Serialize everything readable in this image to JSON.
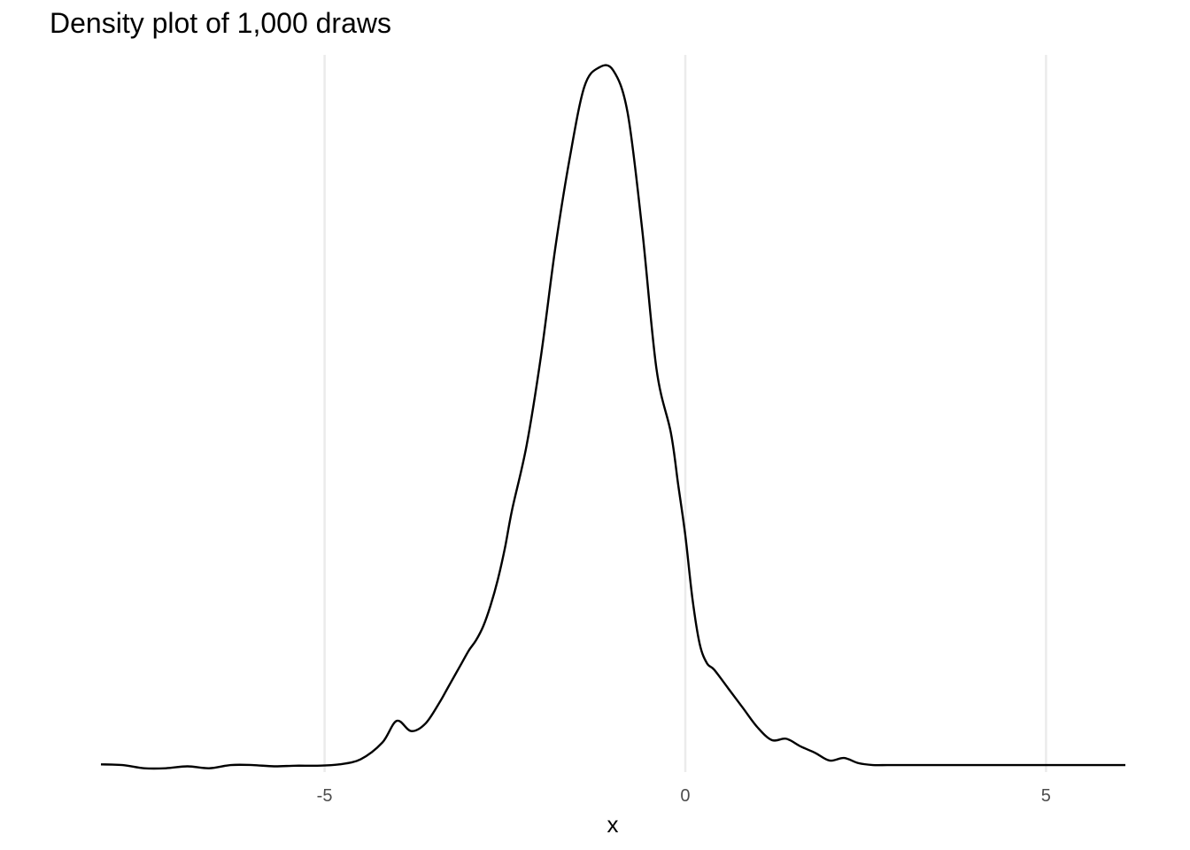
{
  "chart_data": {
    "type": "line",
    "title": "Density plot of 1,000 draws",
    "xlabel": "x",
    "ylabel": "",
    "xlim": [
      -8.1,
      6.1
    ],
    "ylim": [
      -0.005,
      0.555
    ],
    "x_ticks": [
      -5,
      0,
      5
    ],
    "x_tick_labels": [
      "-5",
      "0",
      "5"
    ],
    "y_axis_shown": false,
    "grid": {
      "vertical_major": true,
      "horizontal": false
    },
    "series": [
      {
        "x": [
          -8.1,
          -7.8,
          -7.5,
          -7.2,
          -6.9,
          -6.6,
          -6.3,
          -6.0,
          -5.7,
          -5.4,
          -5.1,
          -4.8,
          -4.5,
          -4.2,
          -4.0,
          -3.8,
          -3.6,
          -3.4,
          -3.3,
          -3.2,
          -3.1,
          -3.0,
          -2.9,
          -2.8,
          -2.7,
          -2.6,
          -2.5,
          -2.4,
          -2.2,
          -2.0,
          -1.8,
          -1.6,
          -1.4,
          -1.2,
          -1.0,
          -0.8,
          -0.6,
          -0.4,
          -0.2,
          -0.1,
          0.0,
          0.1,
          0.2,
          0.3,
          0.4,
          0.6,
          0.8,
          1.0,
          1.2,
          1.4,
          1.6,
          1.8,
          2.0,
          2.2,
          2.4,
          2.6,
          2.8,
          3.0,
          3.2,
          3.4,
          3.6,
          3.8,
          4.0,
          4.2,
          4.4,
          4.6,
          4.8,
          5.0,
          5.2,
          5.4,
          5.6,
          5.8,
          6.1
        ],
        "y": [
          0.001,
          0.0005,
          -0.002,
          -0.002,
          -0.0005,
          -0.002,
          0.0005,
          0.0005,
          -0.0005,
          0.0,
          0.0,
          0.001,
          0.005,
          0.018,
          0.035,
          0.027,
          0.033,
          0.05,
          0.06,
          0.07,
          0.08,
          0.09,
          0.098,
          0.109,
          0.125,
          0.145,
          0.17,
          0.2,
          0.25,
          0.32,
          0.405,
          0.475,
          0.53,
          0.545,
          0.543,
          0.51,
          0.42,
          0.31,
          0.26,
          0.22,
          0.18,
          0.13,
          0.095,
          0.08,
          0.075,
          0.06,
          0.045,
          0.03,
          0.02,
          0.021,
          0.015,
          0.01,
          0.004,
          0.006,
          0.002,
          0.0005,
          0.0005,
          0.0005,
          0.0005,
          0.0005,
          0.0005,
          0.0005,
          0.0005,
          0.0005,
          0.0005,
          0.0005,
          0.0005,
          0.0005,
          0.0005,
          0.0005,
          0.0005,
          0.0005,
          0.0005
        ],
        "color": "#000000"
      }
    ],
    "grid_color": "#ebebeb",
    "tick_label_color": "#4d4d4d"
  }
}
